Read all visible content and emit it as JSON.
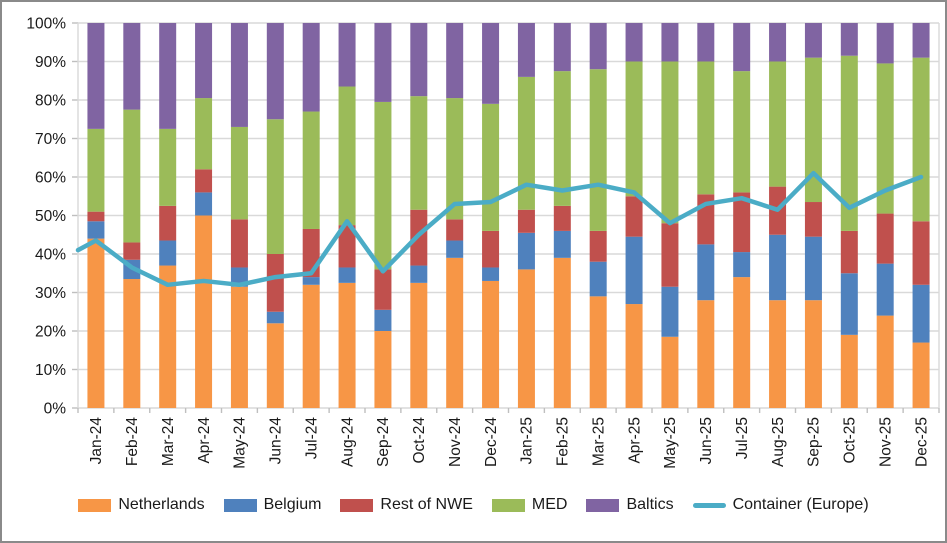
{
  "chart_data": {
    "type": "bar",
    "subtype": "stacked-100-column-with-line-overlay",
    "title": "",
    "categories": [
      "Jan-24",
      "Feb-24",
      "Mar-24",
      "Apr-24",
      "May-24",
      "Jun-24",
      "Jul-24",
      "Aug-24",
      "Sep-24",
      "Oct-24",
      "Nov-24",
      "Dec-24",
      "Jan-25",
      "Feb-25",
      "Mar-25",
      "Apr-25",
      "May-25",
      "Jun-25",
      "Jul-25",
      "Aug-25",
      "Sep-25",
      "Oct-25",
      "Nov-25",
      "Dec-25"
    ],
    "series": [
      {
        "name": "Netherlands",
        "color": "#F79646",
        "values": [
          44,
          33.5,
          37,
          50,
          31.5,
          22,
          32,
          32.5,
          20,
          32.5,
          39,
          33,
          36,
          39,
          29,
          27,
          18.5,
          28,
          34,
          28,
          28,
          19,
          24,
          17
        ]
      },
      {
        "name": "Belgium",
        "color": "#4F81BD",
        "values": [
          4.5,
          5,
          6.5,
          6,
          5,
          3,
          2,
          4,
          5.5,
          4.5,
          4.5,
          3.5,
          9.5,
          7,
          9,
          17.5,
          13,
          14.5,
          6.5,
          17,
          16.5,
          16,
          13.5,
          15
        ]
      },
      {
        "name": "Rest of NWE",
        "color": "#C0504D",
        "values": [
          2.5,
          4.5,
          9,
          6,
          12.5,
          15,
          12.5,
          11,
          10.5,
          14.5,
          5.5,
          9.5,
          6,
          6.5,
          8,
          10.5,
          16.5,
          13,
          15.5,
          12.5,
          9,
          11,
          13,
          16.5
        ]
      },
      {
        "name": "MED",
        "color": "#9BBB59",
        "values": [
          21.5,
          34.5,
          20,
          18.5,
          24,
          35,
          30.5,
          36,
          43.5,
          29.5,
          31.5,
          33,
          34.5,
          35,
          42,
          35,
          42,
          34.5,
          31.5,
          32.5,
          37.5,
          45.5,
          39,
          42.5
        ]
      },
      {
        "name": "Baltics",
        "color": "#8064A2",
        "values": [
          27.5,
          22.5,
          27.5,
          19.5,
          27,
          25,
          23,
          16.5,
          20.5,
          19,
          19.5,
          21,
          14,
          12.5,
          12,
          10,
          10,
          10,
          12.5,
          10,
          9,
          8.5,
          10.5,
          9
        ]
      }
    ],
    "line_series": {
      "name": "Container (Europe)",
      "color": "#4BACC6",
      "values": [
        43.5,
        36.5,
        32,
        33,
        32,
        34,
        35,
        48.5,
        35.5,
        45,
        53,
        53.5,
        58,
        56.5,
        58,
        56,
        48,
        53,
        54.5,
        51.5,
        61,
        52,
        56.5,
        60
      ],
      "left_edge_value": 41
    },
    "y_axis": {
      "min": 0,
      "max": 100,
      "step": 10,
      "tick_labels": [
        "0%",
        "10%",
        "20%",
        "30%",
        "40%",
        "50%",
        "60%",
        "70%",
        "80%",
        "90%",
        "100%"
      ]
    },
    "x_axis": {
      "label_rotation_deg": -90
    },
    "legend_position": "bottom",
    "grid": true,
    "colors": {
      "gridline": "#D9D9D9",
      "axis_line": "#D9D9D9",
      "tick_mark": "#BFBFBF",
      "axis_text": "#1a1a1a",
      "plot_background": "#FFFFFF",
      "frame_border": "#8A8A8A"
    }
  }
}
